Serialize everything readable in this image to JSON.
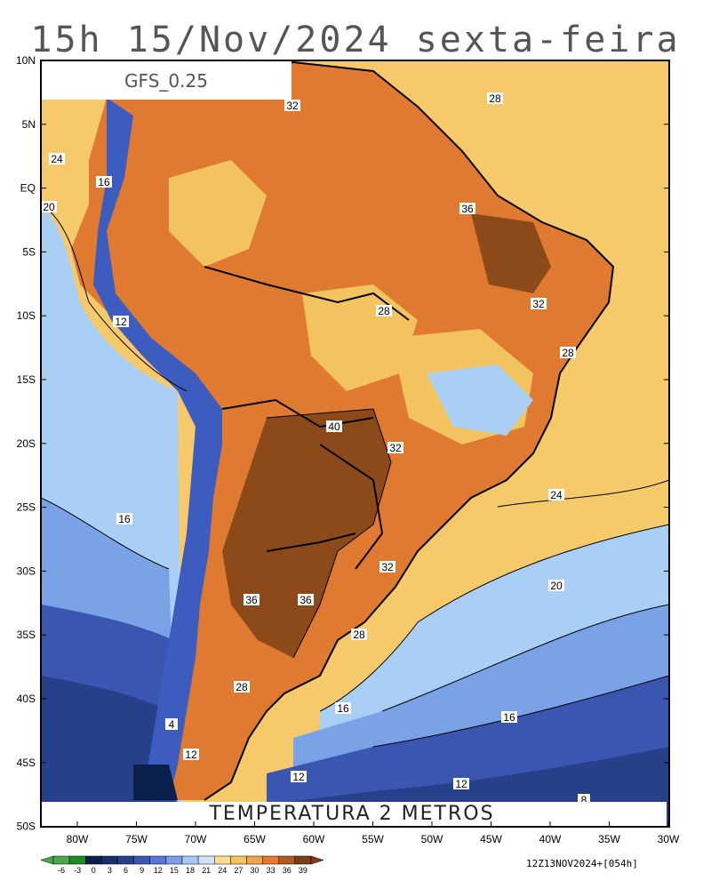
{
  "title": "15h 15/Nov/2024 sexta-feira",
  "model": "GFS_0.25",
  "variable": "TEMPERATURA 2 METROS",
  "run_info": "12Z13NOV2024+[054h]",
  "lat_labels": [
    "10N",
    "5N",
    "EQ",
    "5S",
    "10S",
    "15S",
    "20S",
    "25S",
    "30S",
    "35S",
    "40S",
    "45S",
    "50S"
  ],
  "lon_labels": [
    "80W",
    "75W",
    "70W",
    "65W",
    "60W",
    "55W",
    "50W",
    "45W",
    "40W",
    "35W",
    "30W"
  ],
  "colorbar": {
    "values": [
      "-6",
      "-3",
      "0",
      "3",
      "6",
      "9",
      "12",
      "15",
      "18",
      "21",
      "24",
      "27",
      "30",
      "33",
      "36",
      "39"
    ],
    "colors": [
      "#4aa84a",
      "#1e8c1e",
      "#0b1f4d",
      "#1a2f6e",
      "#26418a",
      "#3a56b0",
      "#5876d8",
      "#7b9ce8",
      "#a6c8f2",
      "#cfe4f8",
      "#f8e08a",
      "#f6c45c",
      "#f2a24a",
      "#e8782e",
      "#b0581e",
      "#7a3e14"
    ]
  },
  "contour_labels": [
    "28",
    "32",
    "20",
    "24",
    "16",
    "36",
    "40",
    "12",
    "8",
    "4"
  ],
  "colors": {
    "ocean_warm": "#f6c96a",
    "ocean_light": "#a9d0f4",
    "ocean_mid": "#7aa2e6",
    "ocean_deep": "#2c4a8f",
    "land_hot": "#e07a30",
    "land_very_hot": "#8c4a1a",
    "land_mild": "#f2c35e",
    "andes_cold": "#3d5cc0"
  }
}
